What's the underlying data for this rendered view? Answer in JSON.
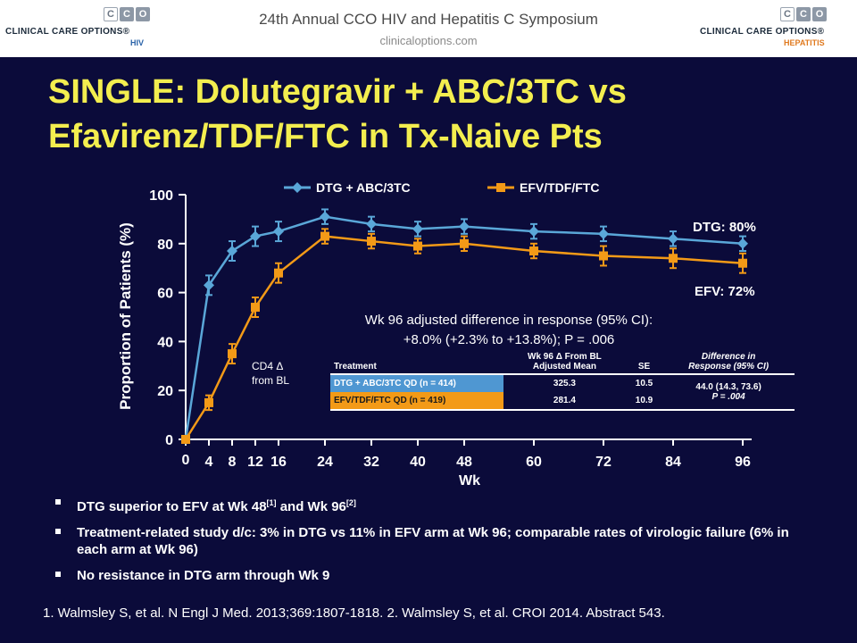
{
  "header": {
    "title": "24th Annual CCO HIV and Hepatitis C Symposium",
    "url": "clinicaloptions.com",
    "logo_left": {
      "squares": [
        "C",
        "C",
        "O"
      ],
      "name": "CLINICAL CARE OPTIONS®",
      "sub": "HIV"
    },
    "logo_right": {
      "squares": [
        "C",
        "C",
        "O"
      ],
      "name": "CLINICAL CARE OPTIONS®",
      "sub": "HEPATITIS"
    }
  },
  "slide": {
    "title_line1": "SINGLE: Dolutegravir + ABC/3TC vs",
    "title_line2": "Efavirenz/TDF/FTC in Tx-Naive Pts"
  },
  "chart_data": {
    "type": "line",
    "xlabel": "Wk",
    "ylabel": "Proportion of Patients (%)",
    "ylim": [
      0,
      100
    ],
    "yticks": [
      0,
      20,
      40,
      60,
      80,
      100
    ],
    "x_tick_labels": [
      "0",
      "4",
      "8",
      "12",
      "16",
      "24",
      "32",
      "40",
      "48",
      "60",
      "72",
      "84",
      "96"
    ],
    "legend_placement": "top",
    "series": [
      {
        "name": "DTG + ABC/3TC",
        "color": "#5aa7d8",
        "marker": "diamond",
        "x": [
          0,
          4,
          8,
          12,
          16,
          24,
          32,
          40,
          48,
          60,
          72,
          84,
          96
        ],
        "y": [
          0,
          63,
          77,
          83,
          85,
          91,
          88,
          86,
          87,
          85,
          84,
          82,
          80
        ],
        "err": [
          1,
          4,
          4,
          4,
          4,
          3,
          3,
          3,
          3,
          3,
          3,
          3,
          3
        ]
      },
      {
        "name": "EFV/TDF/FTC",
        "color": "#f39a17",
        "marker": "square",
        "x": [
          0,
          4,
          8,
          12,
          16,
          24,
          32,
          40,
          48,
          60,
          72,
          84,
          96
        ],
        "y": [
          0,
          15,
          35,
          54,
          68,
          83,
          81,
          79,
          80,
          77,
          75,
          74,
          72
        ],
        "err": [
          1,
          3,
          4,
          4,
          4,
          3,
          3,
          3,
          3,
          3,
          4,
          4,
          4
        ]
      }
    ],
    "end_labels": {
      "dtg": "DTG: 80%",
      "efv": "EFV: 72%"
    },
    "cd4_label_line1": "CD4 Δ",
    "cd4_label_line2": "from BL",
    "annotation_line1": "Wk 96 adjusted difference in response (95% CI):",
    "annotation_line2": "+8.0% (+2.3% to +13.8%); P = .006"
  },
  "table": {
    "col_treatment": "Treatment",
    "col_wk96_line1": "Wk 96 Δ From BL",
    "col_wk96_line2": "Adjusted Mean",
    "col_se": "SE",
    "col_diff_line1": "Difference in",
    "col_diff_line2": "Response (95% CI)",
    "rows": [
      {
        "treatment": "DTG + ABC/3TC QD (n = 414)",
        "mean": "325.3",
        "se": "10.5"
      },
      {
        "treatment": "EFV/TDF/FTC QD (n = 419)",
        "mean": "281.4",
        "se": "10.9"
      }
    ],
    "diff_line1": "44.0 (14.3, 73.6)",
    "diff_line2": "P = .004"
  },
  "bullets": [
    {
      "text": "DTG superior to EFV at Wk 48",
      "sup1": "[1]",
      "mid": " and Wk 96",
      "sup2": "[2]"
    },
    {
      "text": "Treatment-related study d/c: 3% in DTG vs 11% in EFV arm at Wk 96; comparable rates of virologic failure (6% in each arm at Wk 96)"
    },
    {
      "text": "No resistance in DTG arm through Wk 9"
    }
  ],
  "footnote": "1. Walmsley S, et al. N Engl J Med. 2013;369:1807-1818. 2. Walmsley S, et al. CROI 2014. Abstract 543."
}
